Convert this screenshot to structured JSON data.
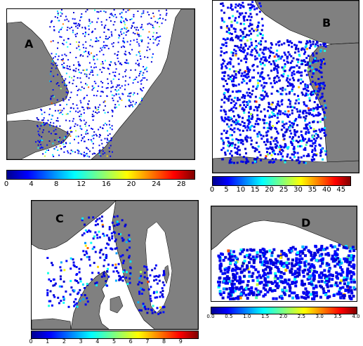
{
  "panels": {
    "a": {
      "letter": "A",
      "colorbar_ticks": [
        "0",
        "4",
        "8",
        "12",
        "16",
        "20",
        "24",
        "28"
      ],
      "colorbar_range": [
        0,
        30
      ]
    },
    "b": {
      "letter": "B",
      "colorbar_ticks": [
        "0",
        "5",
        "10",
        "15",
        "20",
        "25",
        "30",
        "35",
        "40",
        "45"
      ],
      "colorbar_range": [
        0,
        48
      ]
    },
    "c": {
      "letter": "C",
      "colorbar_ticks": [
        "0",
        "1",
        "2",
        "3",
        "4",
        "5",
        "6",
        "7",
        "8",
        "9"
      ],
      "colorbar_range": [
        0,
        10
      ]
    },
    "d": {
      "letter": "D",
      "colorbar_ticks": [
        "0.0",
        "0.5",
        "1.0",
        "1.5",
        "2.0",
        "2.5",
        "3.0",
        "3.5",
        "4.0"
      ],
      "colorbar_range": [
        0,
        4
      ]
    }
  },
  "colors": {
    "land": "#808080",
    "sea_background": "#ffffff",
    "data_low": "#00008f",
    "data_high": "#800000"
  }
}
